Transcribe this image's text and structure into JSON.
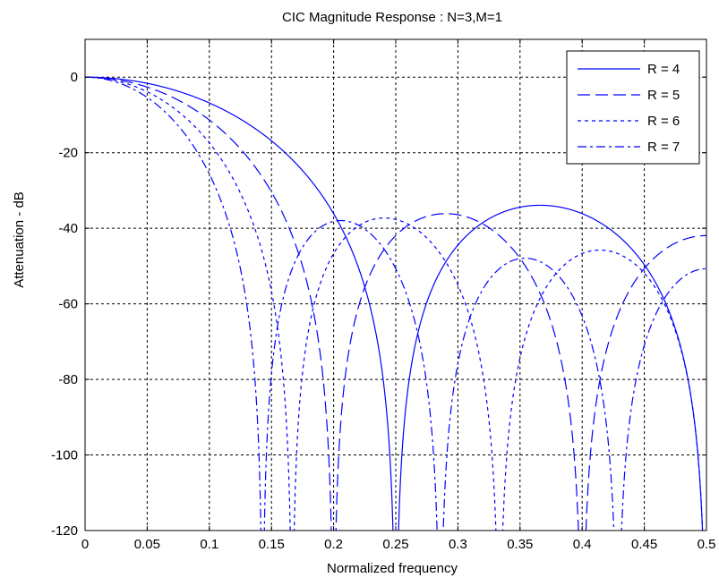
{
  "chart_data": {
    "type": "line",
    "title": "CIC Magnitude Response : N=3,M=1",
    "xlabel": "Normalized frequency",
    "ylabel": "Attenuation - dB",
    "xlim": [
      0,
      0.5
    ],
    "ylim": [
      -120,
      10
    ],
    "x_ticks": [
      "0",
      "0.05",
      "0.1",
      "0.15",
      "0.2",
      "0.25",
      "0.3",
      "0.35",
      "0.4",
      "0.45",
      "0.5"
    ],
    "y_ticks": [
      "0",
      "-20",
      "-40",
      "-60",
      "-80",
      "-100",
      "-120"
    ],
    "grid": true,
    "legend_position": "top-right",
    "line_color": "#0000ff",
    "formula": "20*log10(|sin(pi*f*R*M) / (R*M*sin(pi*f))|^N)",
    "N": 3,
    "M": 1,
    "series": [
      {
        "name": "R = 4",
        "R": 4,
        "style": "solid"
      },
      {
        "name": "R = 5",
        "R": 5,
        "style": "dashed"
      },
      {
        "name": "R = 6",
        "R": 6,
        "style": "dotted"
      },
      {
        "name": "R = 7",
        "R": 7,
        "style": "dashdot"
      }
    ]
  }
}
